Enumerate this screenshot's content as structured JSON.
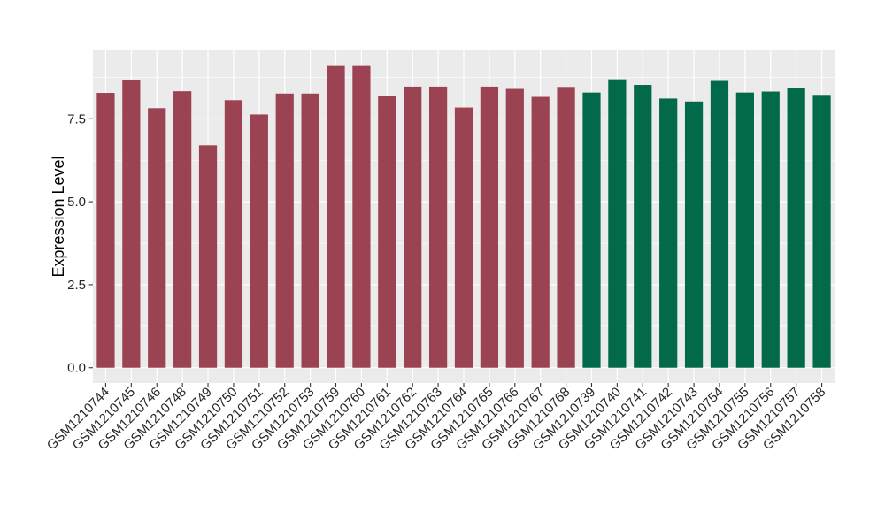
{
  "chart_data": {
    "type": "bar",
    "title": "",
    "xlabel": "",
    "ylabel": "Expression Level",
    "ylim": [
      -0.46,
      9.56
    ],
    "yticks": [
      0,
      2.5,
      5,
      7.5
    ],
    "ytick_labels": [
      "0.0",
      "2.5",
      "5.0",
      "7.5"
    ],
    "yticks_minor": [
      1.25,
      3.75,
      6.25,
      8.75
    ],
    "grid": true,
    "legend_position": "none",
    "panel_bg": "#EBEBEB",
    "grid_color": "#FFFFFF",
    "tick_color": "#333333",
    "axis_text_color": "#262626",
    "group_colors": [
      "#9b4352",
      "#026a4b"
    ],
    "categories": [
      "GSM1210744",
      "GSM1210745",
      "GSM1210746",
      "GSM1210748",
      "GSM1210749",
      "GSM1210750",
      "GSM1210751",
      "GSM1210752",
      "GSM1210753",
      "GSM1210759",
      "GSM1210760",
      "GSM1210761",
      "GSM1210762",
      "GSM1210763",
      "GSM1210764",
      "GSM1210765",
      "GSM1210766",
      "GSM1210767",
      "GSM1210768",
      "GSM1210739",
      "GSM1210740",
      "GSM1210741",
      "GSM1210742",
      "GSM1210743",
      "GSM1210754",
      "GSM1210755",
      "GSM1210756",
      "GSM1210757",
      "GSM1210758"
    ],
    "values": [
      8.28,
      8.67,
      7.82,
      8.33,
      6.7,
      8.06,
      7.63,
      8.26,
      8.26,
      9.09,
      9.09,
      8.18,
      8.47,
      8.47,
      7.84,
      8.47,
      8.4,
      8.16,
      8.46,
      8.29,
      8.69,
      8.52,
      8.11,
      8.02,
      8.64,
      8.29,
      8.32,
      8.42,
      8.22
    ],
    "bar_groups": [
      0,
      0,
      0,
      0,
      0,
      0,
      0,
      0,
      0,
      0,
      0,
      0,
      0,
      0,
      0,
      0,
      0,
      0,
      0,
      1,
      1,
      1,
      1,
      1,
      1,
      1,
      1,
      1,
      1
    ]
  }
}
